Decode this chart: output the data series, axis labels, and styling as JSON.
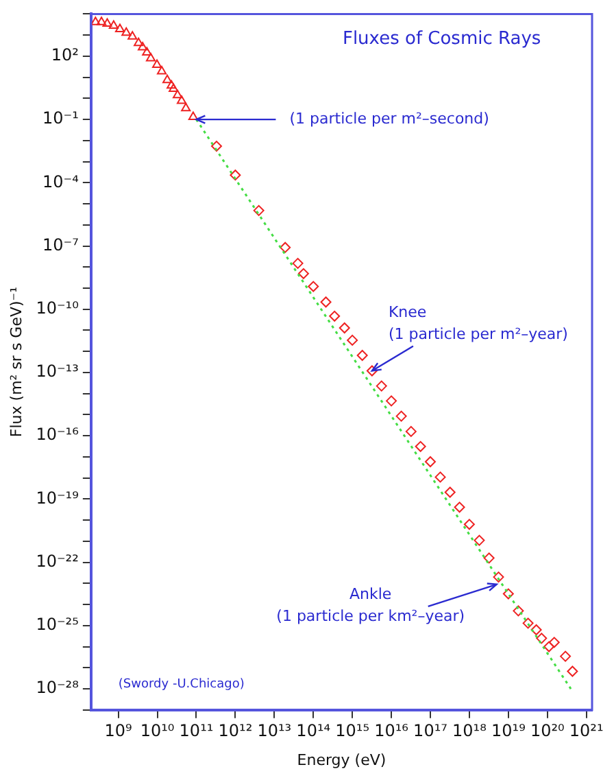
{
  "chart_data": {
    "type": "scatter",
    "title": "Fluxes of Cosmic Rays",
    "xlabel": "Energy (eV)",
    "ylabel": "Flux (m² sr s GeV)⁻¹",
    "log": "xy",
    "grid": false,
    "legend": false,
    "xlim": [
      200000000.0,
      1.4e+21
    ],
    "ylim": [
      1e-29,
      10000.0
    ],
    "xticks": [
      {
        "value": 1000000000.0,
        "label": "10⁹"
      },
      {
        "value": 10000000000.0,
        "label": "10¹⁰"
      },
      {
        "value": 100000000000.0,
        "label": "10¹¹"
      },
      {
        "value": 1000000000000.0,
        "label": "10¹²"
      },
      {
        "value": 10000000000000.0,
        "label": "10¹³"
      },
      {
        "value": 100000000000000.0,
        "label": "10¹⁴"
      },
      {
        "value": 1000000000000000.0,
        "label": "10¹⁵"
      },
      {
        "value": 1e+16,
        "label": "10¹⁶"
      },
      {
        "value": 1e+17,
        "label": "10¹⁷"
      },
      {
        "value": 1e+18,
        "label": "10¹⁸"
      },
      {
        "value": 1e+19,
        "label": "10¹⁹"
      },
      {
        "value": 1e+20,
        "label": "10²⁰"
      },
      {
        "value": 1e+21,
        "label": "10²¹"
      }
    ],
    "yticks": [
      {
        "value": 1e-29,
        "label": null
      },
      {
        "value": 1e-28,
        "label": "10⁻²⁸"
      },
      {
        "value": 1e-27,
        "label": null
      },
      {
        "value": 1e-26,
        "label": null
      },
      {
        "value": 1e-25,
        "label": "10⁻²⁵"
      },
      {
        "value": 1e-24,
        "label": null
      },
      {
        "value": 1e-23,
        "label": null
      },
      {
        "value": 1e-22,
        "label": "10⁻²²"
      },
      {
        "value": 1e-21,
        "label": null
      },
      {
        "value": 1e-20,
        "label": null
      },
      {
        "value": 1e-19,
        "label": "10⁻¹⁹"
      },
      {
        "value": 1e-18,
        "label": null
      },
      {
        "value": 1e-17,
        "label": null
      },
      {
        "value": 1e-16,
        "label": "10⁻¹⁶"
      },
      {
        "value": 1e-15,
        "label": null
      },
      {
        "value": 1e-14,
        "label": null
      },
      {
        "value": 1e-13,
        "label": "10⁻¹³"
      },
      {
        "value": 1e-12,
        "label": null
      },
      {
        "value": 1e-11,
        "label": null
      },
      {
        "value": 1e-10,
        "label": "10⁻¹⁰"
      },
      {
        "value": 1e-09,
        "label": null
      },
      {
        "value": 1e-08,
        "label": null
      },
      {
        "value": 1e-07,
        "label": "10⁻⁷"
      },
      {
        "value": 1e-06,
        "label": null
      },
      {
        "value": 1e-05,
        "label": null
      },
      {
        "value": 0.0001,
        "label": "10⁻⁴"
      },
      {
        "value": 0.001,
        "label": null
      },
      {
        "value": 0.01,
        "label": null
      },
      {
        "value": 0.1,
        "label": "10⁻¹"
      },
      {
        "value": 1,
        "label": null
      },
      {
        "value": 10,
        "label": null
      },
      {
        "value": 100,
        "label": "10²"
      },
      {
        "value": 1000,
        "label": null
      },
      {
        "value": 10000,
        "label": null
      }
    ],
    "series": [
      {
        "type": "line",
        "color": "#44dd44",
        "line_style": "dotted",
        "marker": "none",
        "x": [
          100000000000.0,
          4e+20
        ],
        "values": [
          0.1,
          1e-28
        ]
      },
      {
        "color": "#ee2222",
        "marker": "triangle",
        "x": [
          260000000.0,
          370000000.0,
          520000000.0,
          760000000.0,
          1100000000.0,
          1600000000.0,
          2300000000.0,
          3300000000.0,
          4200000000.0,
          5400000000.0,
          6800000000.0,
          9800000000.0,
          13000000000.0,
          18000000000.0,
          23000000000.0,
          26000000000.0,
          33000000000.0,
          42000000000.0,
          54000000000.0,
          83000000000.0
        ],
        "values": [
          4100.0,
          4100.0,
          3500.0,
          2800.0,
          1900.0,
          1300.0,
          850,
          420,
          260,
          150,
          79,
          39,
          19,
          7.4,
          4.0,
          2.8,
          1.4,
          0.76,
          0.34,
          0.13
        ]
      },
      {
        "color": "#ee2222",
        "marker": "diamond",
        "x": [
          330000000000.0,
          1000000000000.0,
          4000000000000.0,
          19000000000000.0,
          40000000000000.0,
          56000000000000.0,
          100000000000000.0,
          210000000000000.0,
          350000000000000.0
        ],
        "values": [
          0.0054,
          0.00023,
          4.8e-06,
          8.5e-08,
          1.5e-08,
          4.9e-09,
          1.2e-09,
          2.2e-10,
          4.7e-11
        ]
      },
      {
        "color": "#ee2222",
        "marker": "diamond",
        "x": [
          630000000000000.0,
          1000000000000000.0,
          1800000000000000.0,
          3200000000000000.0,
          5600000000000000.0,
          1e+16,
          1.8e+16,
          3.2e+16,
          5.6e+16,
          1e+17,
          1.8e+17,
          3.2e+17,
          5.6e+17,
          1e+18,
          1.8e+18,
          3.2e+18,
          5.6e+18,
          1e+19,
          1.8e+19,
          3.2e+19,
          5.2e+19,
          7.1e+19,
          1.1e+20,
          1.5e+20,
          2.9e+20,
          4.4e+20
        ],
        "values": [
          1.3e-11,
          3.4e-12,
          6.5e-13,
          1.2e-13,
          2.3e-14,
          4.5e-15,
          8.5e-16,
          1.6e-16,
          3.1e-17,
          5.9e-18,
          1.1e-18,
          2.1e-19,
          4.1e-20,
          6.3e-21,
          1.1e-21,
          1.6e-22,
          2e-23,
          3.2e-24,
          5e-25,
          1.3e-25,
          6.3e-26,
          2.5e-26,
          1e-26,
          1.6e-26,
          3.5e-27,
          6.8e-28
        ]
      }
    ],
    "annotations": [
      {
        "text": "(1 particle per m²–second)",
        "x": 100000000000.0,
        "y": 0.1
      },
      {
        "text": "Knee\n(1 particle per m²–year)",
        "x": 3200000000000000.0,
        "y": 1.2e-13
      },
      {
        "text": "Ankle\n(1 particle per km²–year)",
        "x": 5e+18,
        "y": 9e-24
      },
      "(Swordy -U.Chicago)"
    ]
  }
}
